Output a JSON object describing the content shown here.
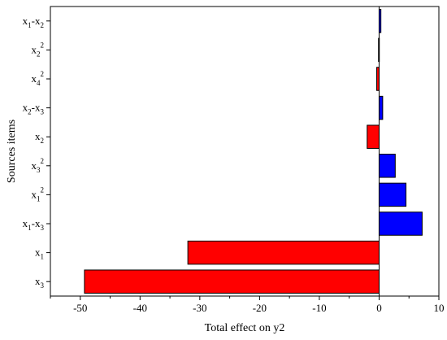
{
  "chart_data": {
    "type": "bar",
    "orientation": "horizontal",
    "xlabel": "Total effect on y2",
    "ylabel": "Sources items",
    "xlim": [
      -55,
      10
    ],
    "xticks": [
      -50,
      -40,
      -30,
      -20,
      -10,
      0,
      10
    ],
    "colors": {
      "positive": "#0000ff",
      "negative": "#ff0000"
    },
    "categories": [
      {
        "label": {
          "base": "x",
          "sub1": "1",
          "mid": "-x",
          "sub2": "2",
          "sup": ""
        },
        "value": 0.3
      },
      {
        "label": {
          "base": "x",
          "sub1": "2",
          "mid": "",
          "sub2": "",
          "sup": "2"
        },
        "value": -0.1
      },
      {
        "label": {
          "base": "x",
          "sub1": "4",
          "mid": "",
          "sub2": "",
          "sup": "2"
        },
        "value": -0.4
      },
      {
        "label": {
          "base": "x",
          "sub1": "2",
          "mid": "-x",
          "sub2": "3",
          "sup": ""
        },
        "value": 0.6
      },
      {
        "label": {
          "base": "x",
          "sub1": "2",
          "mid": "",
          "sub2": "",
          "sup": ""
        },
        "value": -2.0
      },
      {
        "label": {
          "base": "x",
          "sub1": "3",
          "mid": "",
          "sub2": "",
          "sup": "2"
        },
        "value": 2.7
      },
      {
        "label": {
          "base": "x",
          "sub1": "1",
          "mid": "",
          "sub2": "",
          "sup": "2"
        },
        "value": 4.5
      },
      {
        "label": {
          "base": "x",
          "sub1": "1",
          "mid": "-x",
          "sub2": "3",
          "sup": ""
        },
        "value": 7.2
      },
      {
        "label": {
          "base": "x",
          "sub1": "1",
          "mid": "",
          "sub2": "",
          "sup": ""
        },
        "value": -32.0
      },
      {
        "label": {
          "base": "x",
          "sub1": "3",
          "mid": "",
          "sub2": "",
          "sup": ""
        },
        "value": -49.3
      }
    ]
  }
}
